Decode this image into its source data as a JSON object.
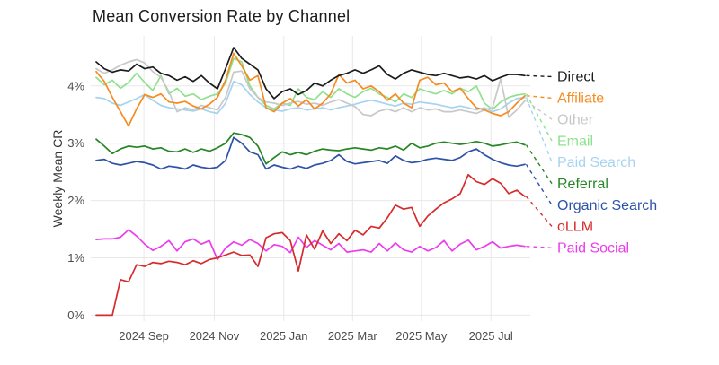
{
  "title": "Mean Conversion Rate by Channel",
  "y_axis": {
    "label": "Weekly Mean CR",
    "tick_labels": [
      "0%",
      "1%",
      "2%",
      "3%",
      "4%"
    ],
    "tick_values": [
      0,
      1,
      2,
      3,
      4
    ]
  },
  "x_axis": {
    "tick_labels": [
      "2024 Sep",
      "2024 Nov",
      "2025 Jan",
      "2025 Mar",
      "2025 May",
      "2025 Jul"
    ],
    "tick_positions_weeks": [
      5.9,
      14.6,
      23.2,
      31.7,
      40.2,
      48.8
    ]
  },
  "colors": {
    "background": "#ffffff",
    "gridline": "#e8e8e8",
    "tick_text": "#4c4c4c",
    "title_text": "#1c1c1c"
  },
  "chart_data": {
    "type": "line",
    "x_unit": "week_index",
    "n_points": 54,
    "ylim": [
      0,
      4.9
    ],
    "grid": true,
    "legend_position": "right-labels-with-dashed-leaders",
    "ylabel": "Weekly Mean CR",
    "series": [
      {
        "name": "Direct",
        "color": "#1c1c1c",
        "values": [
          4.42,
          4.3,
          4.24,
          4.28,
          4.26,
          4.38,
          4.3,
          4.33,
          4.22,
          4.18,
          4.1,
          4.16,
          4.08,
          4.18,
          4.05,
          3.95,
          4.3,
          4.67,
          4.48,
          4.38,
          4.28,
          3.95,
          3.78,
          3.9,
          3.95,
          3.85,
          3.92,
          4.05,
          4.0,
          4.1,
          4.18,
          4.22,
          4.28,
          4.22,
          4.28,
          4.35,
          4.2,
          4.12,
          4.22,
          4.28,
          4.24,
          4.2,
          4.18,
          4.22,
          4.18,
          4.14,
          4.16,
          4.12,
          4.18,
          4.09,
          4.15,
          4.2,
          4.2,
          4.18
        ]
      },
      {
        "name": "Affiliate",
        "color": "#f68b1f",
        "values": [
          4.25,
          4.08,
          3.8,
          3.55,
          3.3,
          3.6,
          3.85,
          3.8,
          3.86,
          3.72,
          3.7,
          3.73,
          3.65,
          3.6,
          3.68,
          3.8,
          4.1,
          4.57,
          4.35,
          4.1,
          4.18,
          3.62,
          3.55,
          3.7,
          3.78,
          3.65,
          3.76,
          3.6,
          3.7,
          3.86,
          4.2,
          4.05,
          4.1,
          3.95,
          4.0,
          3.9,
          3.75,
          3.86,
          3.7,
          3.62,
          4.1,
          4.15,
          4.02,
          4.05,
          3.9,
          3.96,
          3.78,
          3.62,
          3.58,
          3.52,
          3.48,
          3.55,
          3.7,
          3.83
        ]
      },
      {
        "name": "Other",
        "color": "#c8c8c8",
        "values": [
          4.3,
          4.22,
          4.28,
          4.36,
          4.42,
          4.46,
          4.4,
          4.25,
          4.15,
          3.9,
          3.55,
          3.62,
          3.58,
          3.66,
          3.62,
          3.58,
          3.8,
          4.24,
          4.26,
          3.95,
          3.8,
          3.72,
          3.7,
          3.66,
          3.7,
          3.73,
          3.68,
          3.7,
          3.66,
          3.72,
          3.76,
          3.7,
          3.64,
          3.5,
          3.48,
          3.56,
          3.6,
          3.55,
          3.62,
          3.55,
          3.62,
          3.58,
          3.6,
          3.55,
          3.55,
          3.58,
          3.55,
          3.52,
          3.58,
          3.62,
          4.12,
          3.45,
          3.58,
          3.74
        ]
      },
      {
        "name": "Email",
        "color": "#8fe18f",
        "values": [
          4.15,
          4.02,
          4.1,
          3.96,
          4.06,
          4.22,
          4.06,
          3.92,
          4.18,
          3.86,
          3.96,
          3.82,
          3.86,
          3.76,
          3.82,
          3.86,
          4.05,
          4.48,
          4.42,
          4.0,
          3.8,
          3.66,
          3.6,
          3.7,
          3.66,
          3.95,
          3.8,
          3.76,
          3.9,
          3.8,
          3.95,
          3.86,
          3.8,
          3.9,
          3.96,
          3.86,
          3.8,
          3.72,
          3.86,
          3.8,
          3.95,
          3.9,
          3.86,
          3.92,
          3.86,
          3.96,
          3.9,
          4.0,
          3.7,
          3.59,
          3.72,
          3.8,
          3.84,
          3.86
        ]
      },
      {
        "name": "Paid Search",
        "color": "#a6d3f0",
        "values": [
          3.8,
          3.78,
          3.7,
          3.66,
          3.72,
          3.78,
          3.85,
          3.75,
          3.66,
          3.62,
          3.6,
          3.58,
          3.56,
          3.6,
          3.55,
          3.52,
          3.7,
          4.08,
          4.02,
          3.85,
          3.72,
          3.62,
          3.58,
          3.56,
          3.6,
          3.62,
          3.58,
          3.6,
          3.62,
          3.58,
          3.62,
          3.65,
          3.68,
          3.72,
          3.75,
          3.72,
          3.68,
          3.65,
          3.7,
          3.68,
          3.72,
          3.7,
          3.68,
          3.65,
          3.62,
          3.65,
          3.62,
          3.58,
          3.62,
          3.55,
          3.6,
          3.7,
          3.78,
          3.8
        ]
      },
      {
        "name": "Referral",
        "color": "#268626",
        "values": [
          3.07,
          2.95,
          2.82,
          2.9,
          2.95,
          2.93,
          2.95,
          2.9,
          2.92,
          2.86,
          2.85,
          2.9,
          2.84,
          2.9,
          2.86,
          2.92,
          3.0,
          3.18,
          3.15,
          3.1,
          2.95,
          2.64,
          2.75,
          2.85,
          2.8,
          2.84,
          2.8,
          2.86,
          2.9,
          2.88,
          2.87,
          2.9,
          2.92,
          2.9,
          2.88,
          2.92,
          2.9,
          2.95,
          2.88,
          3.0,
          2.92,
          2.95,
          3.0,
          3.02,
          3.0,
          2.98,
          3.0,
          3.03,
          3.0,
          2.95,
          2.97,
          3.0,
          3.02,
          2.97
        ]
      },
      {
        "name": "Organic Search",
        "color": "#2d52a8",
        "values": [
          2.7,
          2.72,
          2.65,
          2.62,
          2.65,
          2.68,
          2.66,
          2.62,
          2.55,
          2.6,
          2.58,
          2.55,
          2.62,
          2.58,
          2.56,
          2.58,
          2.7,
          3.1,
          3.0,
          2.85,
          2.8,
          2.55,
          2.62,
          2.58,
          2.55,
          2.6,
          2.56,
          2.62,
          2.65,
          2.7,
          2.8,
          2.68,
          2.64,
          2.66,
          2.68,
          2.7,
          2.65,
          2.78,
          2.7,
          2.66,
          2.68,
          2.72,
          2.74,
          2.72,
          2.7,
          2.75,
          2.85,
          2.9,
          2.8,
          2.72,
          2.66,
          2.62,
          2.6,
          2.63
        ]
      },
      {
        "name": "oLLM",
        "color": "#d42b2b",
        "values": [
          0.0,
          0.0,
          0.0,
          0.62,
          0.58,
          0.88,
          0.85,
          0.92,
          0.9,
          0.94,
          0.92,
          0.88,
          0.95,
          0.9,
          0.97,
          1.0,
          1.05,
          1.1,
          1.04,
          1.05,
          0.85,
          1.35,
          1.42,
          1.44,
          1.3,
          0.77,
          1.4,
          1.15,
          1.47,
          1.25,
          1.42,
          1.3,
          1.48,
          1.4,
          1.55,
          1.52,
          1.7,
          1.92,
          1.85,
          1.88,
          1.55,
          1.73,
          1.85,
          1.96,
          2.03,
          2.12,
          2.45,
          2.33,
          2.28,
          2.38,
          2.3,
          2.12,
          2.18,
          2.07
        ]
      },
      {
        "name": "Paid Social",
        "color": "#ec3dec",
        "values": [
          1.32,
          1.33,
          1.33,
          1.36,
          1.49,
          1.38,
          1.24,
          1.13,
          1.2,
          1.3,
          1.12,
          1.28,
          1.33,
          1.24,
          1.3,
          0.97,
          1.17,
          1.28,
          1.22,
          1.32,
          1.25,
          1.12,
          1.23,
          1.2,
          1.09,
          1.36,
          1.18,
          1.3,
          1.22,
          1.14,
          1.25,
          1.1,
          1.12,
          1.14,
          1.1,
          1.25,
          1.12,
          1.26,
          1.14,
          1.1,
          1.2,
          1.12,
          1.18,
          1.3,
          1.12,
          1.24,
          1.31,
          1.14,
          1.2,
          1.28,
          1.17,
          1.2,
          1.22,
          1.2
        ]
      }
    ]
  }
}
